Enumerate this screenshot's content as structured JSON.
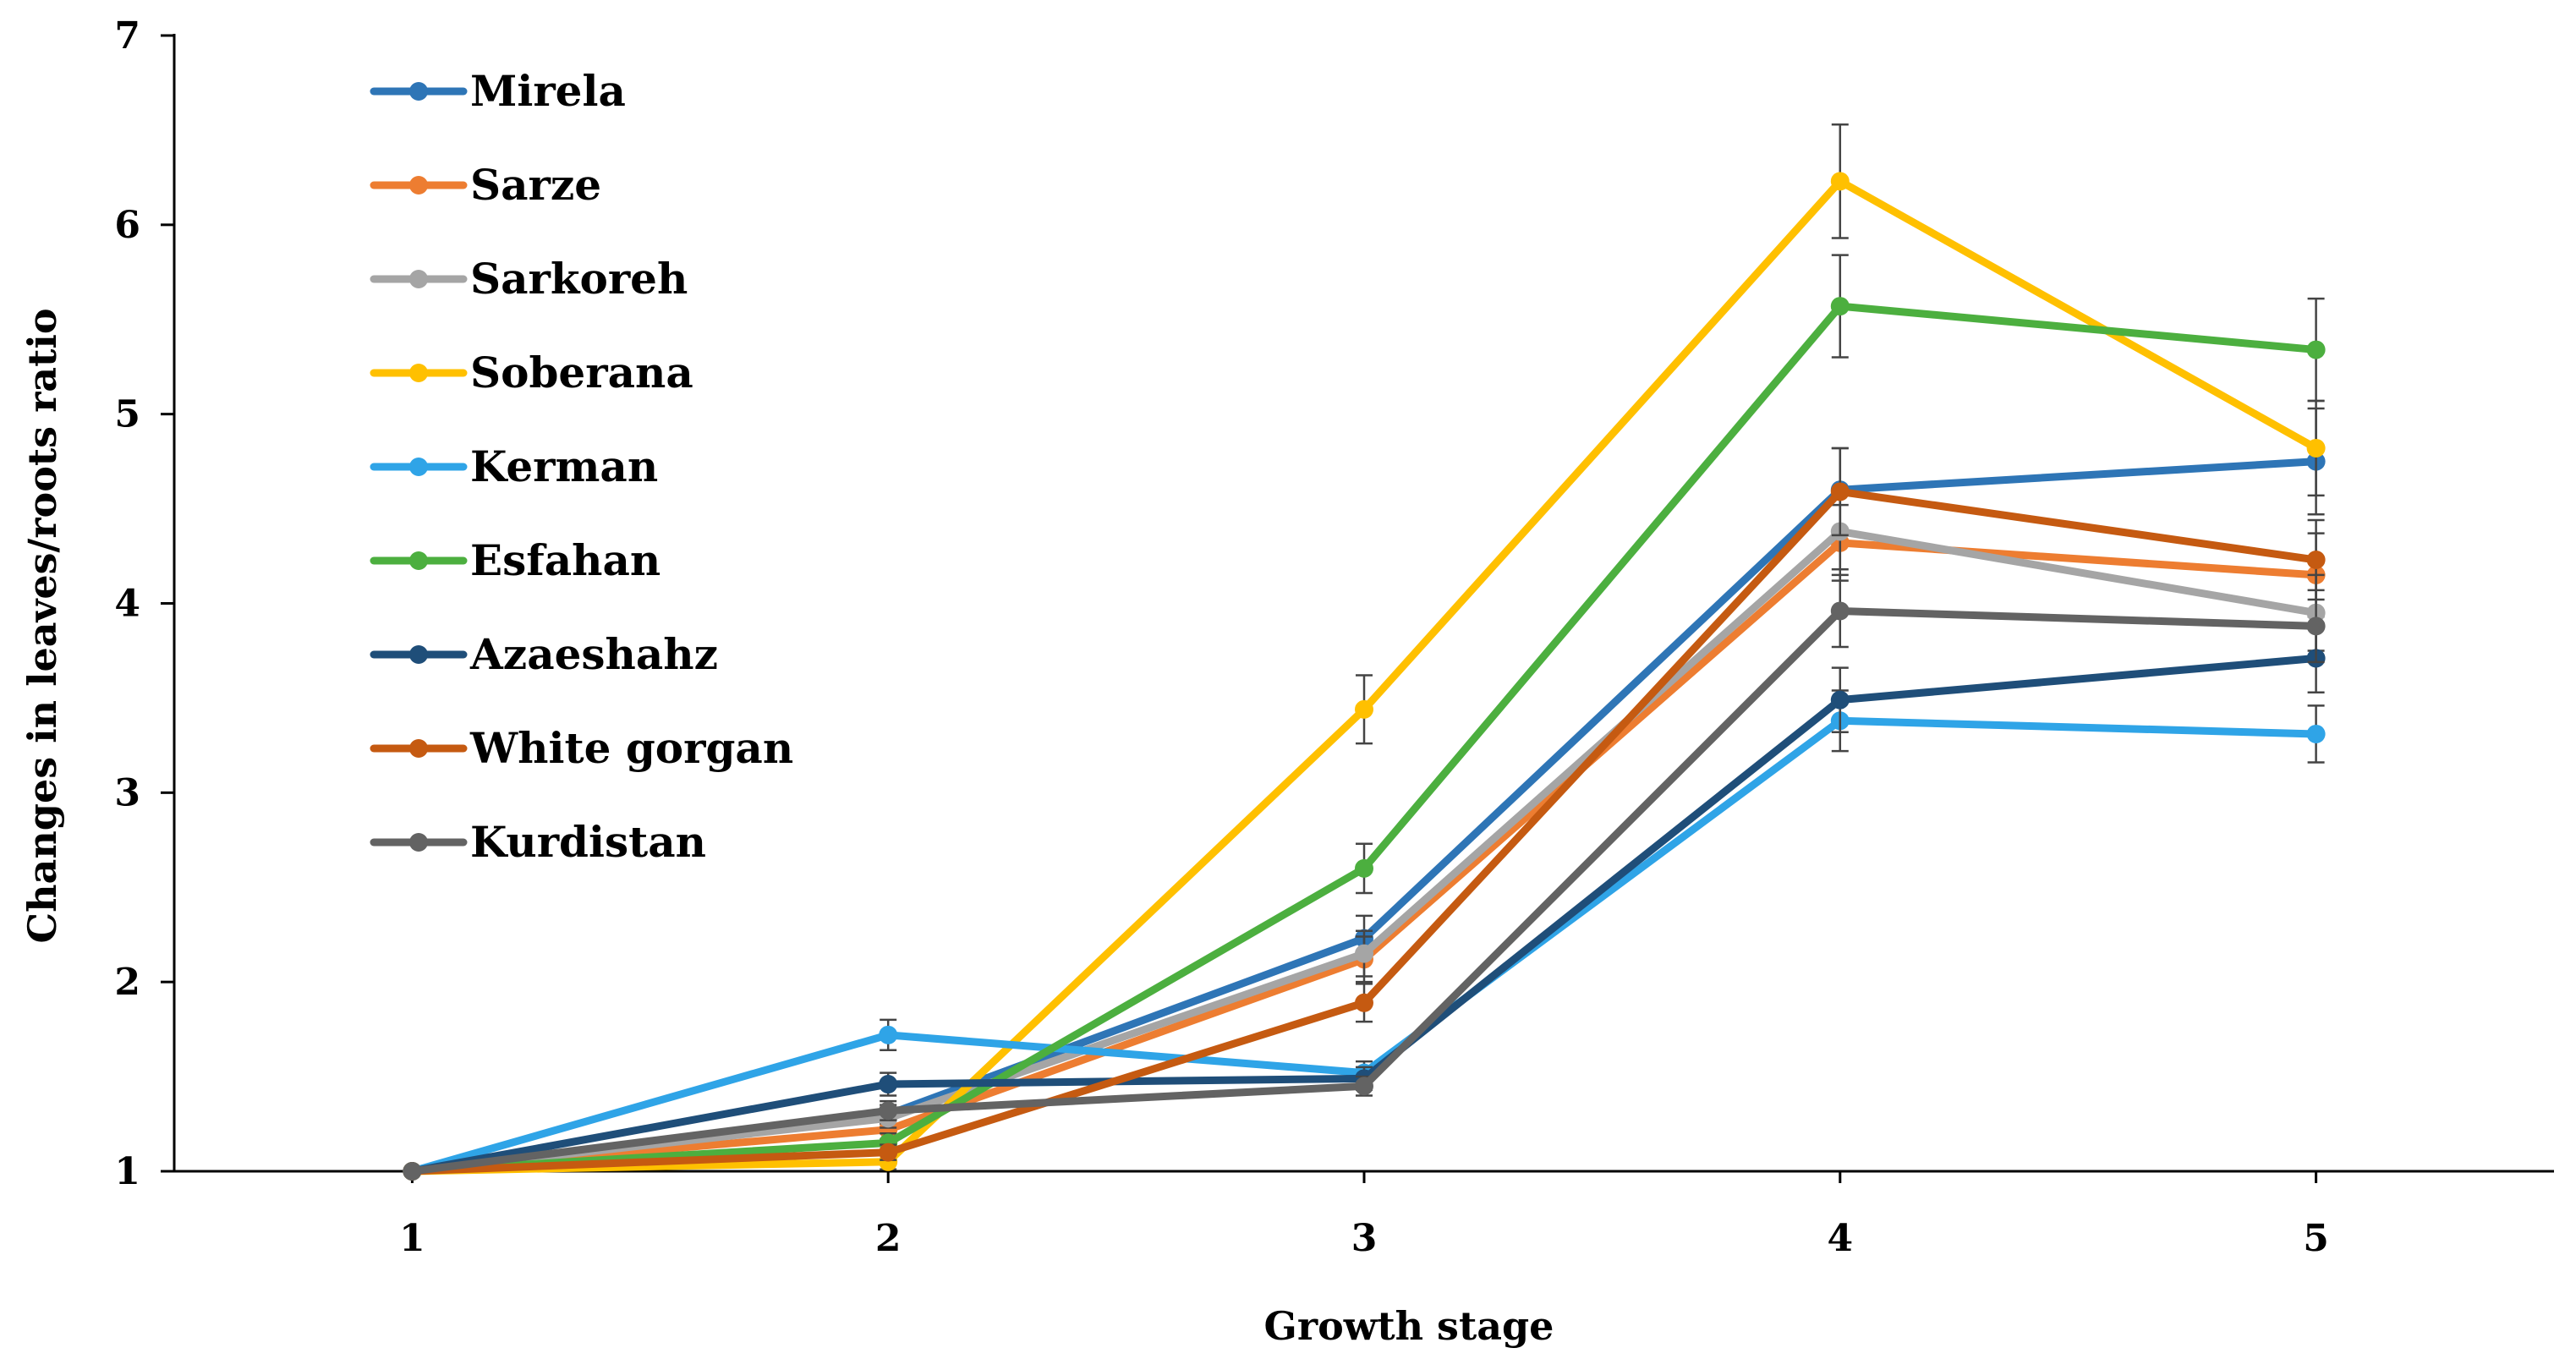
{
  "chart_data": {
    "type": "line",
    "title": "",
    "xlabel": "Growth stage",
    "ylabel": "Changes in leaves/roots ratio",
    "x": [
      1,
      2,
      3,
      4,
      5
    ],
    "x_tick_labels": [
      "1",
      "2",
      "3",
      "4",
      "5"
    ],
    "xlim": [
      0.5,
      5.5
    ],
    "ylim": [
      1,
      7
    ],
    "y_ticks": [
      1,
      2,
      3,
      4,
      5,
      6,
      7
    ],
    "y_tick_labels": [
      "1",
      "2",
      "3",
      "4",
      "5",
      "6",
      "7"
    ],
    "grid": false,
    "legend_position": "top-left",
    "series": [
      {
        "name": "Mirela",
        "color": "#2E75B6",
        "values": [
          1.0,
          1.3,
          2.23,
          4.6,
          4.75
        ],
        "errors": [
          0.0,
          0.05,
          0.12,
          0.22,
          0.28
        ]
      },
      {
        "name": "Sarze",
        "color": "#ED7D31",
        "values": [
          1.0,
          1.22,
          2.12,
          4.32,
          4.15
        ],
        "errors": [
          0.0,
          0.05,
          0.12,
          0.2,
          0.22
        ]
      },
      {
        "name": "Sarkoreh",
        "color": "#A5A5A5",
        "values": [
          1.0,
          1.28,
          2.15,
          4.38,
          3.95
        ],
        "errors": [
          0.0,
          0.05,
          0.12,
          0.2,
          0.2
        ]
      },
      {
        "name": "Soberana",
        "color": "#FFC000",
        "values": [
          1.0,
          1.05,
          3.44,
          6.23,
          4.82
        ],
        "errors": [
          0.0,
          0.04,
          0.18,
          0.3,
          0.25
        ]
      },
      {
        "name": "Kerman",
        "color": "#2FA4E7",
        "values": [
          1.0,
          1.72,
          1.52,
          3.38,
          3.31
        ],
        "errors": [
          0.0,
          0.08,
          0.06,
          0.16,
          0.15
        ]
      },
      {
        "name": "Esfahan",
        "color": "#4CAF3F",
        "values": [
          1.0,
          1.15,
          2.6,
          5.57,
          5.34
        ],
        "errors": [
          0.0,
          0.05,
          0.13,
          0.27,
          0.27
        ]
      },
      {
        "name": "Azaeshahz",
        "color": "#1F4E79",
        "values": [
          1.0,
          1.46,
          1.49,
          3.49,
          3.71
        ],
        "errors": [
          0.0,
          0.06,
          0.06,
          0.17,
          0.18
        ]
      },
      {
        "name": "White gorgan",
        "color": "#C55A11",
        "values": [
          1.0,
          1.1,
          1.89,
          4.59,
          4.23
        ],
        "errors": [
          0.0,
          0.04,
          0.1,
          0.23,
          0.21
        ]
      },
      {
        "name": "Kurdistan",
        "color": "#636363",
        "values": [
          1.0,
          1.32,
          1.45,
          3.96,
          3.88
        ],
        "errors": [
          0.0,
          0.05,
          0.05,
          0.19,
          0.19
        ]
      }
    ]
  }
}
